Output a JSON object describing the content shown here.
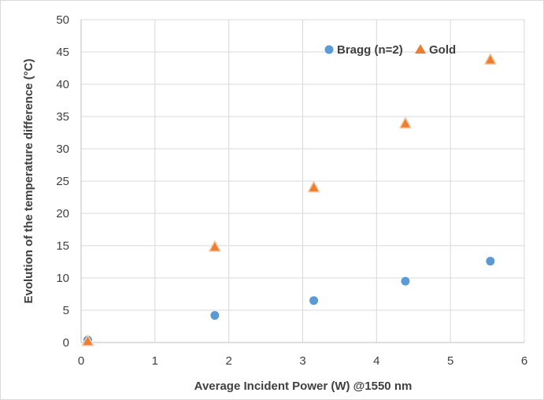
{
  "chart_data": {
    "type": "scatter",
    "title": "",
    "xlabel": "Average Incident Power (W) @1550 nm",
    "ylabel": "Evolution of the temperature difference (°C)",
    "xlim": [
      0,
      6
    ],
    "ylim": [
      0,
      50
    ],
    "x_ticks": [
      "0",
      "1",
      "2",
      "3",
      "4",
      "5",
      "6"
    ],
    "y_ticks": [
      "0",
      "5",
      "10",
      "15",
      "20",
      "25",
      "30",
      "35",
      "40",
      "45",
      "50"
    ],
    "grid": true,
    "legend_position": "top-right",
    "series": [
      {
        "name": "Bragg (n=2)",
        "marker": "circle",
        "color": "#5b9bd5",
        "x": [
          0.09,
          1.81,
          3.15,
          4.39,
          5.54
        ],
        "y": [
          0.4,
          4.2,
          6.5,
          9.5,
          12.6
        ]
      },
      {
        "name": "Gold",
        "marker": "triangle",
        "color": "#ed7d31",
        "x": [
          0.09,
          1.81,
          3.15,
          4.39,
          5.54
        ],
        "y": [
          0.2,
          14.8,
          24.0,
          33.9,
          43.8
        ]
      }
    ]
  }
}
